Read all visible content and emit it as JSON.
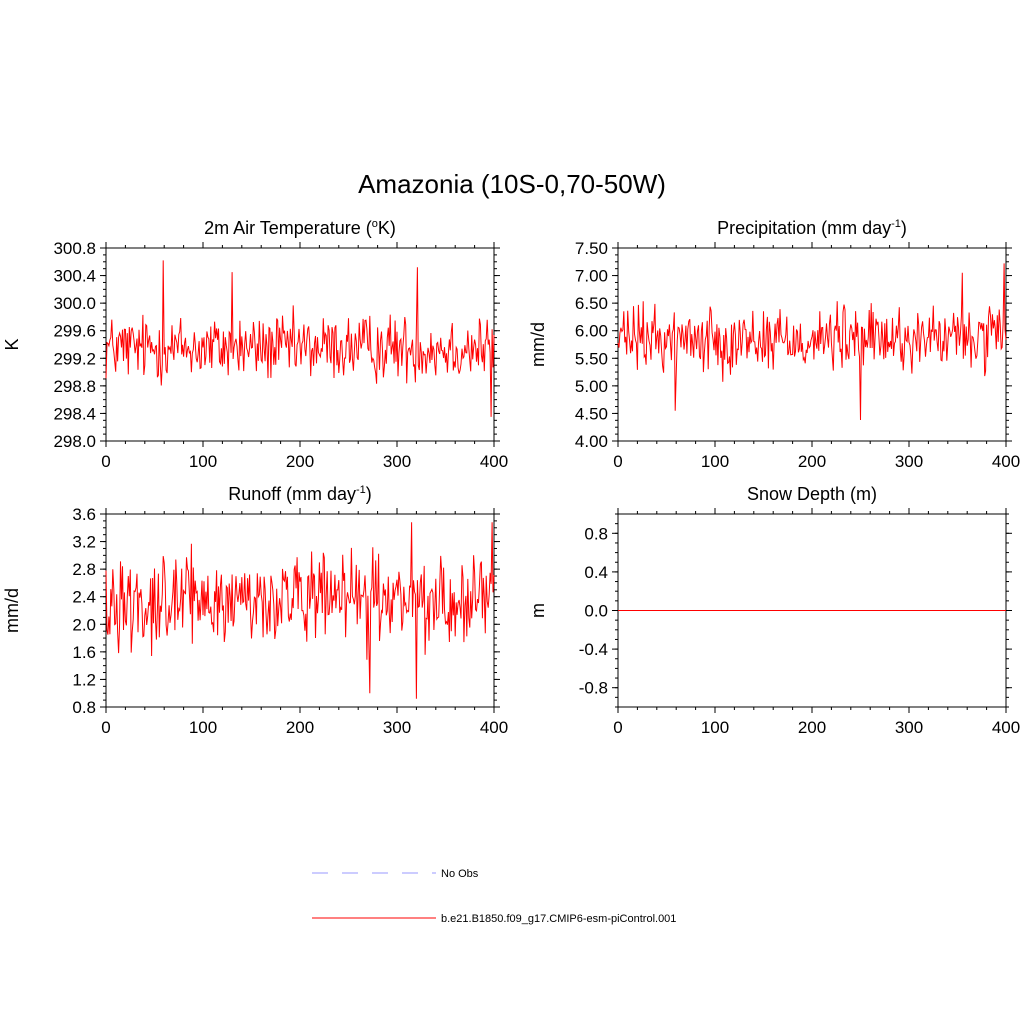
{
  "title": "Amazonia (10S-0,70-50W)",
  "colors": {
    "model": "#ff0000",
    "obs": "#9999ff",
    "axis": "#000000"
  },
  "chart_data": [
    {
      "type": "line",
      "title_main": "2m Air Temperature (",
      "title_sup": "o",
      "title_end": "K)",
      "ylabel": "K",
      "xlim": [
        0,
        400
      ],
      "ylim": [
        298.0,
        300.8
      ],
      "xticks": [
        "0",
        "100",
        "200",
        "300",
        "400"
      ],
      "yticks": [
        "298.0",
        "298.4",
        "298.8",
        "299.2",
        "299.6",
        "300.0",
        "300.4",
        "300.8"
      ],
      "mean": 299.35,
      "spread": 0.45,
      "peaks": [
        [
          59,
          300.62
        ],
        [
          130,
          300.45
        ],
        [
          321,
          300.52
        ],
        [
          397,
          298.35
        ]
      ],
      "series_name": "b.e21.B1850.f09_g17.CMIP6-esm-piControl.001"
    },
    {
      "type": "line",
      "title_main": "Precipitation (mm day",
      "title_sup": "-1",
      "title_end": ")",
      "ylabel": "mm/d",
      "xlim": [
        0,
        400
      ],
      "ylim": [
        4.0,
        7.5
      ],
      "xticks": [
        "0",
        "100",
        "200",
        "300",
        "400"
      ],
      "yticks": [
        "4.00",
        "4.50",
        "5.00",
        "5.50",
        "6.00",
        "6.50",
        "7.00",
        "7.50"
      ],
      "mean": 5.85,
      "spread": 0.55,
      "peaks": [
        [
          250,
          4.38
        ],
        [
          355,
          7.05
        ],
        [
          398,
          7.22
        ],
        [
          59,
          4.55
        ]
      ],
      "series_name": "b.e21.B1850.f09_g17.CMIP6-esm-piControl.001"
    },
    {
      "type": "line",
      "title_main": "Runoff (mm day",
      "title_sup": "-1",
      "title_end": ")",
      "ylabel": "mm/d",
      "xlim": [
        0,
        400
      ],
      "ylim": [
        0.8,
        3.6
      ],
      "xticks": [
        "0",
        "100",
        "200",
        "300",
        "400"
      ],
      "yticks": [
        "0.8",
        "1.2",
        "1.6",
        "2.0",
        "2.4",
        "2.8",
        "3.2",
        "3.6"
      ],
      "mean": 2.35,
      "spread": 0.6,
      "peaks": [
        [
          320,
          0.92
        ],
        [
          272,
          1.0
        ],
        [
          315,
          3.48
        ],
        [
          398,
          3.48
        ]
      ],
      "series_name": "b.e21.B1850.f09_g17.CMIP6-esm-piControl.001"
    },
    {
      "type": "line",
      "title_main": "Snow Depth (m)",
      "title_sup": "",
      "title_end": "",
      "ylabel": "m",
      "xlim": [
        0,
        400
      ],
      "ylim": [
        -1.0,
        1.0
      ],
      "xticks": [
        "0",
        "100",
        "200",
        "300",
        "400"
      ],
      "yticks": [
        "-0.8",
        "-0.4",
        "0.0",
        "0.4",
        "0.8"
      ],
      "constant": 0.0,
      "series_name": "b.e21.B1850.f09_g17.CMIP6-esm-piControl.001"
    }
  ],
  "legend": {
    "items": [
      {
        "label": "No Obs",
        "style": "dashed"
      },
      {
        "label": "b.e21.B1850.f09_g17.CMIP6-esm-piControl.001",
        "style": "solid"
      }
    ]
  }
}
